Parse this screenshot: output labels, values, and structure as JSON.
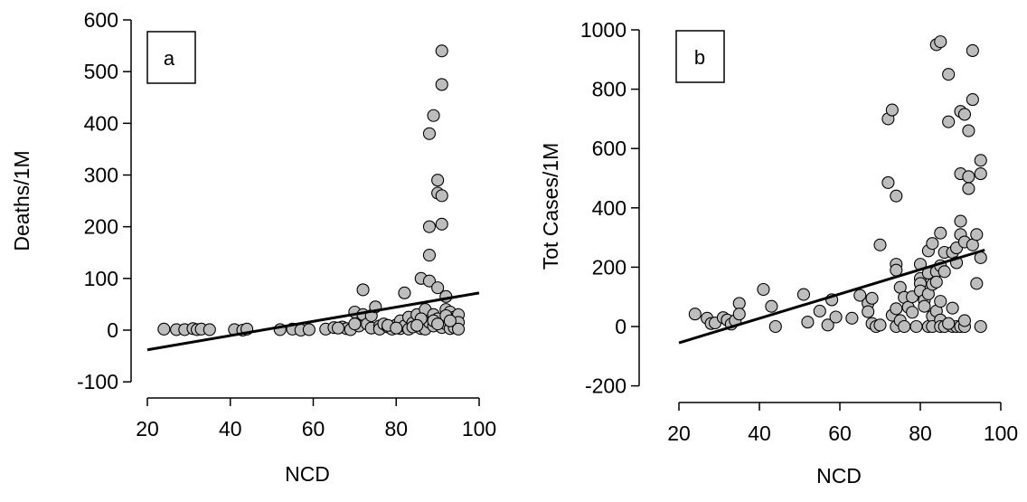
{
  "chart_data": [
    {
      "type": "scatter",
      "panel_label": "a",
      "xlabel": "NCD",
      "ylabel": "Deaths/1M",
      "xlim": [
        20,
        100
      ],
      "ylim": [
        -100,
        600
      ],
      "x_ticks": [
        20,
        40,
        60,
        80,
        100
      ],
      "y_ticks": [
        -100,
        0,
        100,
        200,
        300,
        400,
        500,
        600
      ],
      "grid": false,
      "point_color": "#bdbdbd",
      "trendline": {
        "x": [
          20,
          100
        ],
        "y": [
          -38,
          72
        ]
      },
      "points": [
        [
          24,
          2
        ],
        [
          27,
          1
        ],
        [
          29,
          1
        ],
        [
          31,
          3
        ],
        [
          32,
          1
        ],
        [
          33,
          2
        ],
        [
          35,
          1
        ],
        [
          41,
          1
        ],
        [
          43,
          0
        ],
        [
          44,
          2
        ],
        [
          52,
          1
        ],
        [
          55,
          2
        ],
        [
          57,
          0
        ],
        [
          59,
          1
        ],
        [
          63,
          2
        ],
        [
          65,
          5
        ],
        [
          67,
          6
        ],
        [
          68,
          3
        ],
        [
          69,
          1
        ],
        [
          70,
          35
        ],
        [
          71,
          8
        ],
        [
          72,
          78
        ],
        [
          72,
          30
        ],
        [
          73,
          12
        ],
        [
          74,
          4
        ],
        [
          74,
          28
        ],
        [
          75,
          45
        ],
        [
          76,
          8
        ],
        [
          76,
          2
        ],
        [
          77,
          12
        ],
        [
          78,
          6
        ],
        [
          79,
          2
        ],
        [
          80,
          10
        ],
        [
          81,
          3
        ],
        [
          81,
          18
        ],
        [
          82,
          72
        ],
        [
          82,
          8
        ],
        [
          83,
          25
        ],
        [
          83,
          2
        ],
        [
          84,
          14
        ],
        [
          85,
          30
        ],
        [
          86,
          3
        ],
        [
          86,
          100
        ],
        [
          87,
          2
        ],
        [
          87,
          40
        ],
        [
          88,
          95
        ],
        [
          88,
          15
        ],
        [
          88,
          380
        ],
        [
          88,
          200
        ],
        [
          88,
          145
        ],
        [
          89,
          415
        ],
        [
          89,
          8
        ],
        [
          89,
          30
        ],
        [
          90,
          290
        ],
        [
          90,
          265
        ],
        [
          90,
          82
        ],
        [
          90,
          22
        ],
        [
          91,
          540
        ],
        [
          91,
          475
        ],
        [
          91,
          260
        ],
        [
          91,
          205
        ],
        [
          91,
          5
        ],
        [
          92,
          65
        ],
        [
          92,
          40
        ],
        [
          92,
          12
        ],
        [
          93,
          35
        ],
        [
          93,
          3
        ],
        [
          94,
          25
        ],
        [
          94,
          5
        ],
        [
          95,
          30
        ],
        [
          95,
          15
        ],
        [
          95,
          2
        ],
        [
          86,
          22
        ],
        [
          84,
          6
        ],
        [
          89,
          18
        ],
        [
          92,
          28
        ],
        [
          90,
          12
        ],
        [
          78,
          9
        ],
        [
          80,
          4
        ],
        [
          70,
          12
        ],
        [
          66,
          4
        ],
        [
          85,
          9
        ],
        [
          93,
          18
        ]
      ]
    },
    {
      "type": "scatter",
      "panel_label": "b",
      "xlabel": "NCD",
      "ylabel": "Tot Cases/1M",
      "xlim": [
        20,
        100
      ],
      "ylim": [
        -200,
        1000
      ],
      "x_ticks": [
        20,
        40,
        60,
        80,
        100
      ],
      "y_ticks": [
        -200,
        0,
        200,
        400,
        600,
        800,
        1000
      ],
      "grid": false,
      "point_color": "#bdbdbd",
      "trendline": {
        "x": [
          20,
          96
        ],
        "y": [
          -55,
          258
        ]
      },
      "points": [
        [
          24,
          42
        ],
        [
          27,
          28
        ],
        [
          28,
          10
        ],
        [
          29,
          12
        ],
        [
          31,
          30
        ],
        [
          32,
          22
        ],
        [
          33,
          8
        ],
        [
          34,
          20
        ],
        [
          35,
          78
        ],
        [
          35,
          42
        ],
        [
          41,
          125
        ],
        [
          43,
          68
        ],
        [
          44,
          0
        ],
        [
          51,
          108
        ],
        [
          52,
          15
        ],
        [
          55,
          52
        ],
        [
          57,
          5
        ],
        [
          58,
          90
        ],
        [
          59,
          32
        ],
        [
          63,
          28
        ],
        [
          65,
          105
        ],
        [
          67,
          78
        ],
        [
          67,
          50
        ],
        [
          68,
          95
        ],
        [
          68,
          10
        ],
        [
          69,
          0
        ],
        [
          70,
          275
        ],
        [
          70,
          5
        ],
        [
          72,
          700
        ],
        [
          72,
          485
        ],
        [
          73,
          730
        ],
        [
          73,
          38
        ],
        [
          74,
          440
        ],
        [
          74,
          210
        ],
        [
          74,
          190
        ],
        [
          74,
          60
        ],
        [
          74,
          0
        ],
        [
          75,
          132
        ],
        [
          75,
          20
        ],
        [
          76,
          98
        ],
        [
          76,
          0
        ],
        [
          77,
          65
        ],
        [
          78,
          100
        ],
        [
          78,
          48
        ],
        [
          79,
          0
        ],
        [
          80,
          210
        ],
        [
          80,
          162
        ],
        [
          80,
          145
        ],
        [
          80,
          120
        ],
        [
          81,
          88
        ],
        [
          81,
          68
        ],
        [
          82,
          255
        ],
        [
          82,
          180
        ],
        [
          82,
          110
        ],
        [
          82,
          0
        ],
        [
          83,
          280
        ],
        [
          83,
          142
        ],
        [
          83,
          35
        ],
        [
          83,
          0
        ],
        [
          84,
          950
        ],
        [
          84,
          185
        ],
        [
          84,
          52
        ],
        [
          85,
          960
        ],
        [
          85,
          315
        ],
        [
          85,
          205
        ],
        [
          85,
          85
        ],
        [
          85,
          22
        ],
        [
          85,
          0
        ],
        [
          86,
          250
        ],
        [
          86,
          185
        ],
        [
          86,
          0
        ],
        [
          87,
          850
        ],
        [
          87,
          690
        ],
        [
          88,
          250
        ],
        [
          88,
          62
        ],
        [
          88,
          0
        ],
        [
          89,
          265
        ],
        [
          89,
          0
        ],
        [
          90,
          725
        ],
        [
          90,
          515
        ],
        [
          90,
          355
        ],
        [
          90,
          310
        ],
        [
          90,
          0
        ],
        [
          91,
          715
        ],
        [
          91,
          285
        ],
        [
          91,
          0
        ],
        [
          92,
          660
        ],
        [
          92,
          505
        ],
        [
          92,
          465
        ],
        [
          93,
          930
        ],
        [
          93,
          765
        ],
        [
          93,
          275
        ],
        [
          94,
          310
        ],
        [
          94,
          145
        ],
        [
          95,
          560
        ],
        [
          95,
          515
        ],
        [
          95,
          232
        ],
        [
          95,
          0
        ],
        [
          89,
          215
        ],
        [
          87,
          10
        ],
        [
          91,
          20
        ],
        [
          84,
          150
        ]
      ]
    }
  ]
}
